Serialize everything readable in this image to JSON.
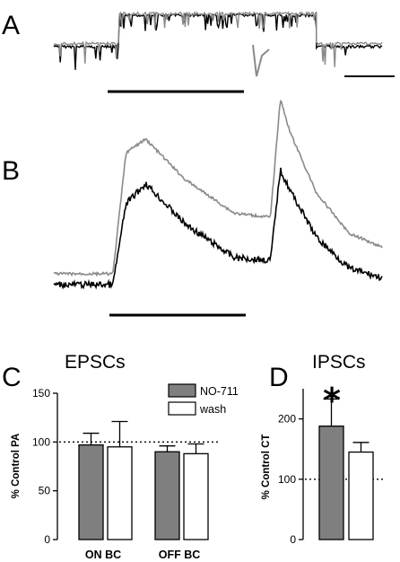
{
  "figure": {
    "panel_A": "A",
    "panel_B": "B",
    "panel_C": "C",
    "panel_D": "D",
    "title_C": "EPSCs",
    "title_D": "IPSCs",
    "significance_marker": "*"
  },
  "colors": {
    "trace_black": "#000000",
    "trace_gray": "#8a8a8a",
    "bar_gray": "#7f7f7f",
    "bar_white": "#ffffff"
  },
  "chart_data": [
    {
      "type": "line",
      "panel": "A",
      "description_of_series": [
        "black",
        "gray"
      ],
      "series": [
        {
          "color": "#000000",
          "segments": [
            {
              "x": [
                0,
                20
              ],
              "y": [
                -1.0,
                -1.0
              ]
            },
            {
              "x": [
                20,
                80
              ],
              "y": [
                0.0,
                0.0
              ]
            },
            {
              "x": [
                80,
                100
              ],
              "y": [
                -1.0,
                -1.0
              ]
            }
          ]
        },
        {
          "color": "#8a8a8a",
          "segments": [
            {
              "x": [
                0,
                20
              ],
              "y": [
                -0.9,
                -0.9
              ]
            },
            {
              "x": [
                20,
                80
              ],
              "y": [
                0.05,
                0.05
              ]
            },
            {
              "x": [
                80,
                100
              ],
              "y": [
                -0.9,
                -0.9
              ]
            }
          ]
        }
      ]
    },
    {
      "type": "line",
      "panel": "B",
      "series": [
        {
          "color": "#000000",
          "x": [
            0,
            18,
            22,
            28,
            40,
            55,
            66,
            69,
            72,
            80,
            90,
            100
          ],
          "y": [
            0,
            0,
            0.6,
            0.75,
            0.45,
            0.2,
            0.18,
            0.85,
            0.7,
            0.35,
            0.12,
            0.05
          ]
        },
        {
          "color": "#8a8a8a",
          "x": [
            0,
            18,
            22,
            28,
            40,
            55,
            66,
            69,
            72,
            80,
            90,
            100
          ],
          "y": [
            0,
            0,
            0.9,
            1.0,
            0.7,
            0.45,
            0.42,
            1.3,
            1.05,
            0.6,
            0.3,
            0.2
          ]
        }
      ]
    },
    {
      "type": "bar",
      "panel": "C",
      "title": "EPSCs",
      "ylabel": "% Control PA",
      "ylim": [
        0,
        150
      ],
      "yticks": [
        0,
        50,
        100,
        150
      ],
      "reference_line": 100,
      "categories": [
        "ON BC",
        "OFF BC"
      ],
      "series": [
        {
          "name": "NO-711",
          "color": "#7f7f7f",
          "values": [
            97,
            90
          ],
          "errors": [
            12,
            6
          ]
        },
        {
          "name": "wash",
          "color": "#ffffff",
          "values": [
            95,
            88
          ],
          "errors": [
            26,
            10
          ]
        }
      ],
      "legend": "top-right"
    },
    {
      "type": "bar",
      "panel": "D",
      "title": "IPSCs",
      "ylabel": "% Control CT",
      "ylim": [
        0,
        250
      ],
      "yticks": [
        0,
        100,
        200
      ],
      "reference_line": 100,
      "categories": [
        ""
      ],
      "series": [
        {
          "color": "#7f7f7f",
          "values": [
            188
          ],
          "errors": [
            45
          ]
        },
        {
          "color": "#ffffff",
          "values": [
            145
          ],
          "errors": [
            16
          ]
        }
      ]
    }
  ]
}
